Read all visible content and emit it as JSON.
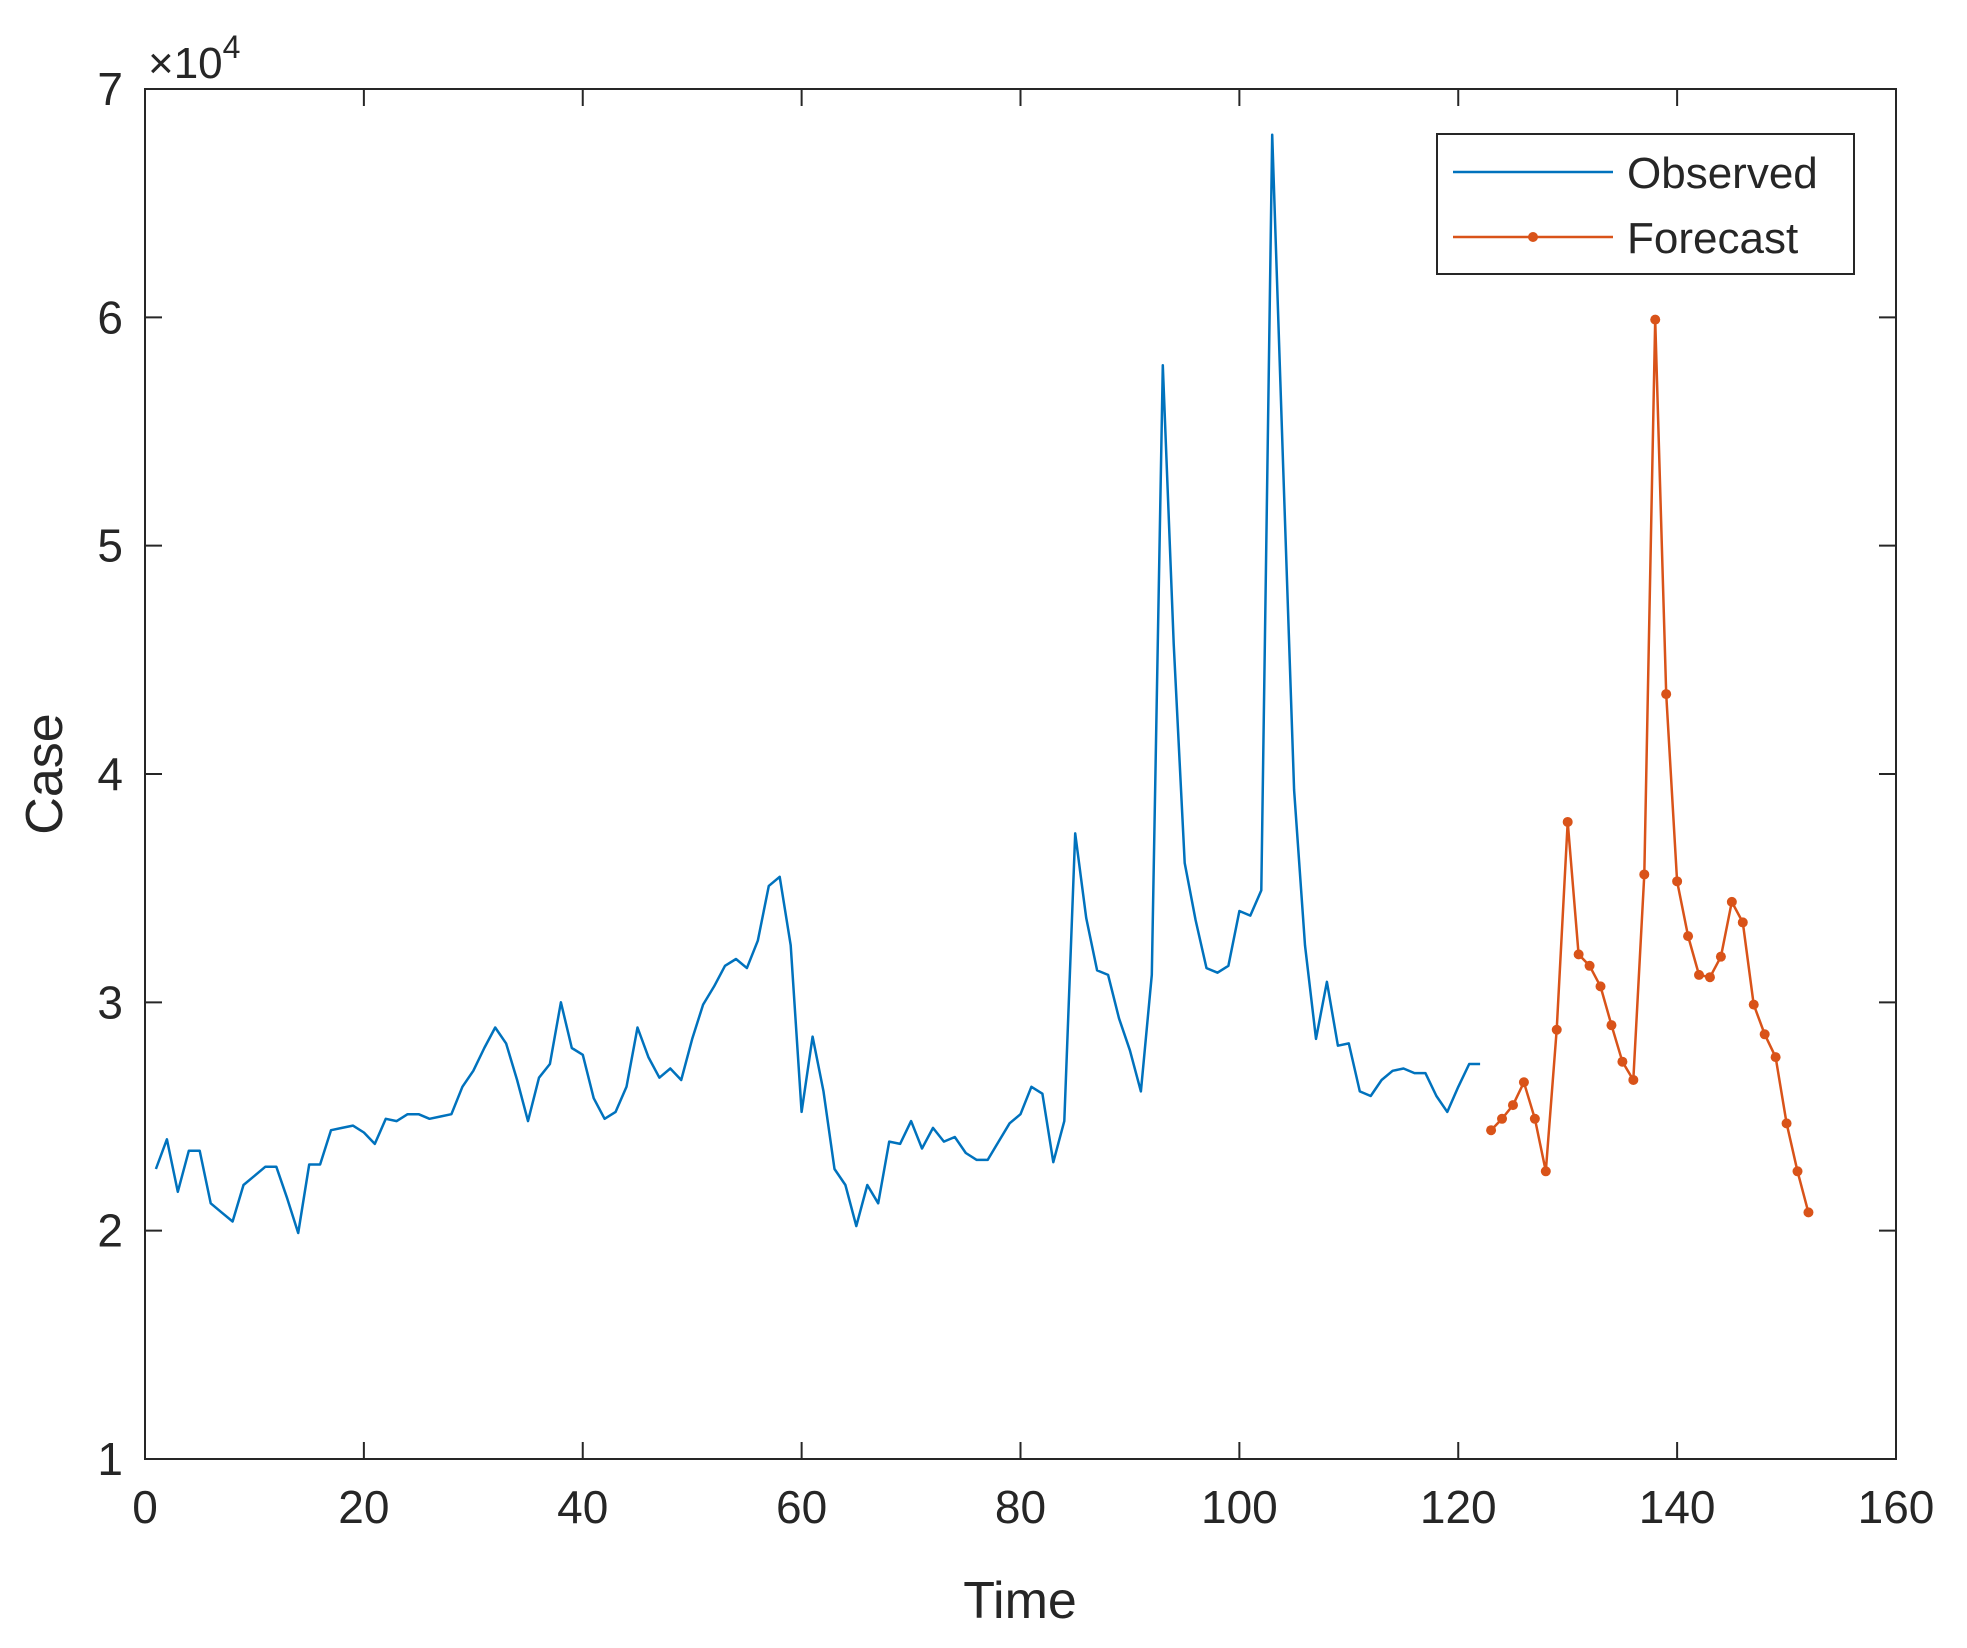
{
  "chart_data": {
    "type": "line",
    "title": "",
    "xlabel": "Time",
    "ylabel": "Case",
    "y_exponent_label": {
      "base": "×10",
      "power": "4"
    },
    "xlim": [
      0,
      160
    ],
    "ylim": [
      1,
      7
    ],
    "x_ticks": [
      0,
      20,
      40,
      60,
      80,
      100,
      120,
      140,
      160
    ],
    "y_ticks": [
      1,
      2,
      3,
      4,
      5,
      6,
      7
    ],
    "grid": false,
    "legend_position": "top-right",
    "series": [
      {
        "name": "Observed",
        "color": "#0072BD",
        "marker": "none",
        "x": [
          1,
          2,
          3,
          4,
          5,
          6,
          7,
          8,
          9,
          10,
          11,
          12,
          13,
          14,
          15,
          16,
          17,
          18,
          19,
          20,
          21,
          22,
          23,
          24,
          25,
          26,
          27,
          28,
          29,
          30,
          31,
          32,
          33,
          34,
          35,
          36,
          37,
          38,
          39,
          40,
          41,
          42,
          43,
          44,
          45,
          46,
          47,
          48,
          49,
          50,
          51,
          52,
          53,
          54,
          55,
          56,
          57,
          58,
          59,
          60,
          61,
          62,
          63,
          64,
          65,
          66,
          67,
          68,
          69,
          70,
          71,
          72,
          73,
          74,
          75,
          76,
          77,
          78,
          79,
          80,
          81,
          82,
          83,
          84,
          85,
          86,
          87,
          88,
          89,
          90,
          91,
          92,
          93,
          94,
          95,
          96,
          97,
          98,
          99,
          100,
          101,
          102,
          103,
          104,
          105,
          106,
          107,
          108,
          109,
          110,
          111,
          112,
          113,
          114,
          115,
          116,
          117,
          118,
          119,
          120,
          121,
          122
        ],
        "y": [
          2.27,
          2.4,
          2.17,
          2.35,
          2.35,
          2.12,
          2.08,
          2.04,
          2.2,
          2.24,
          2.28,
          2.28,
          2.14,
          1.99,
          2.29,
          2.29,
          2.44,
          2.45,
          2.46,
          2.43,
          2.38,
          2.49,
          2.48,
          2.51,
          2.51,
          2.49,
          2.5,
          2.51,
          2.63,
          2.7,
          2.8,
          2.89,
          2.82,
          2.66,
          2.48,
          2.67,
          2.73,
          3.0,
          2.8,
          2.77,
          2.58,
          2.49,
          2.52,
          2.63,
          2.89,
          2.76,
          2.67,
          2.71,
          2.66,
          2.84,
          2.99,
          3.07,
          3.16,
          3.19,
          3.15,
          3.27,
          3.51,
          3.55,
          3.25,
          2.52,
          2.85,
          2.61,
          2.27,
          2.2,
          2.02,
          2.2,
          2.12,
          2.39,
          2.38,
          2.48,
          2.36,
          2.45,
          2.39,
          2.41,
          2.34,
          2.31,
          2.31,
          2.39,
          2.47,
          2.51,
          2.63,
          2.6,
          2.3,
          2.48,
          3.74,
          3.37,
          3.14,
          3.12,
          2.93,
          2.79,
          2.61,
          3.12,
          5.79,
          4.57,
          3.61,
          3.36,
          3.15,
          3.13,
          3.16,
          3.4,
          3.38,
          3.49,
          6.8,
          5.34,
          3.93,
          3.25,
          2.84,
          3.09,
          2.81,
          2.82,
          2.61,
          2.59,
          2.66,
          2.7,
          2.71,
          2.69,
          2.69,
          2.59,
          2.52,
          2.63,
          2.73,
          2.73
        ]
      },
      {
        "name": "Forecast",
        "color": "#D95319",
        "marker": "dot",
        "x": [
          123,
          124,
          125,
          126,
          127,
          128,
          129,
          130,
          131,
          132,
          133,
          134,
          135,
          136,
          137,
          138,
          139,
          140,
          141,
          142,
          143,
          144,
          145,
          146,
          147,
          148,
          149,
          150,
          151,
          152
        ],
        "y": [
          2.44,
          2.49,
          2.55,
          2.65,
          2.49,
          2.26,
          2.88,
          3.79,
          3.21,
          3.16,
          3.07,
          2.9,
          2.74,
          2.66,
          3.56,
          5.99,
          4.35,
          3.53,
          3.29,
          3.12,
          3.11,
          3.2,
          3.44,
          3.35,
          2.99,
          2.86,
          2.76,
          2.47,
          2.26,
          2.08
        ]
      }
    ]
  }
}
